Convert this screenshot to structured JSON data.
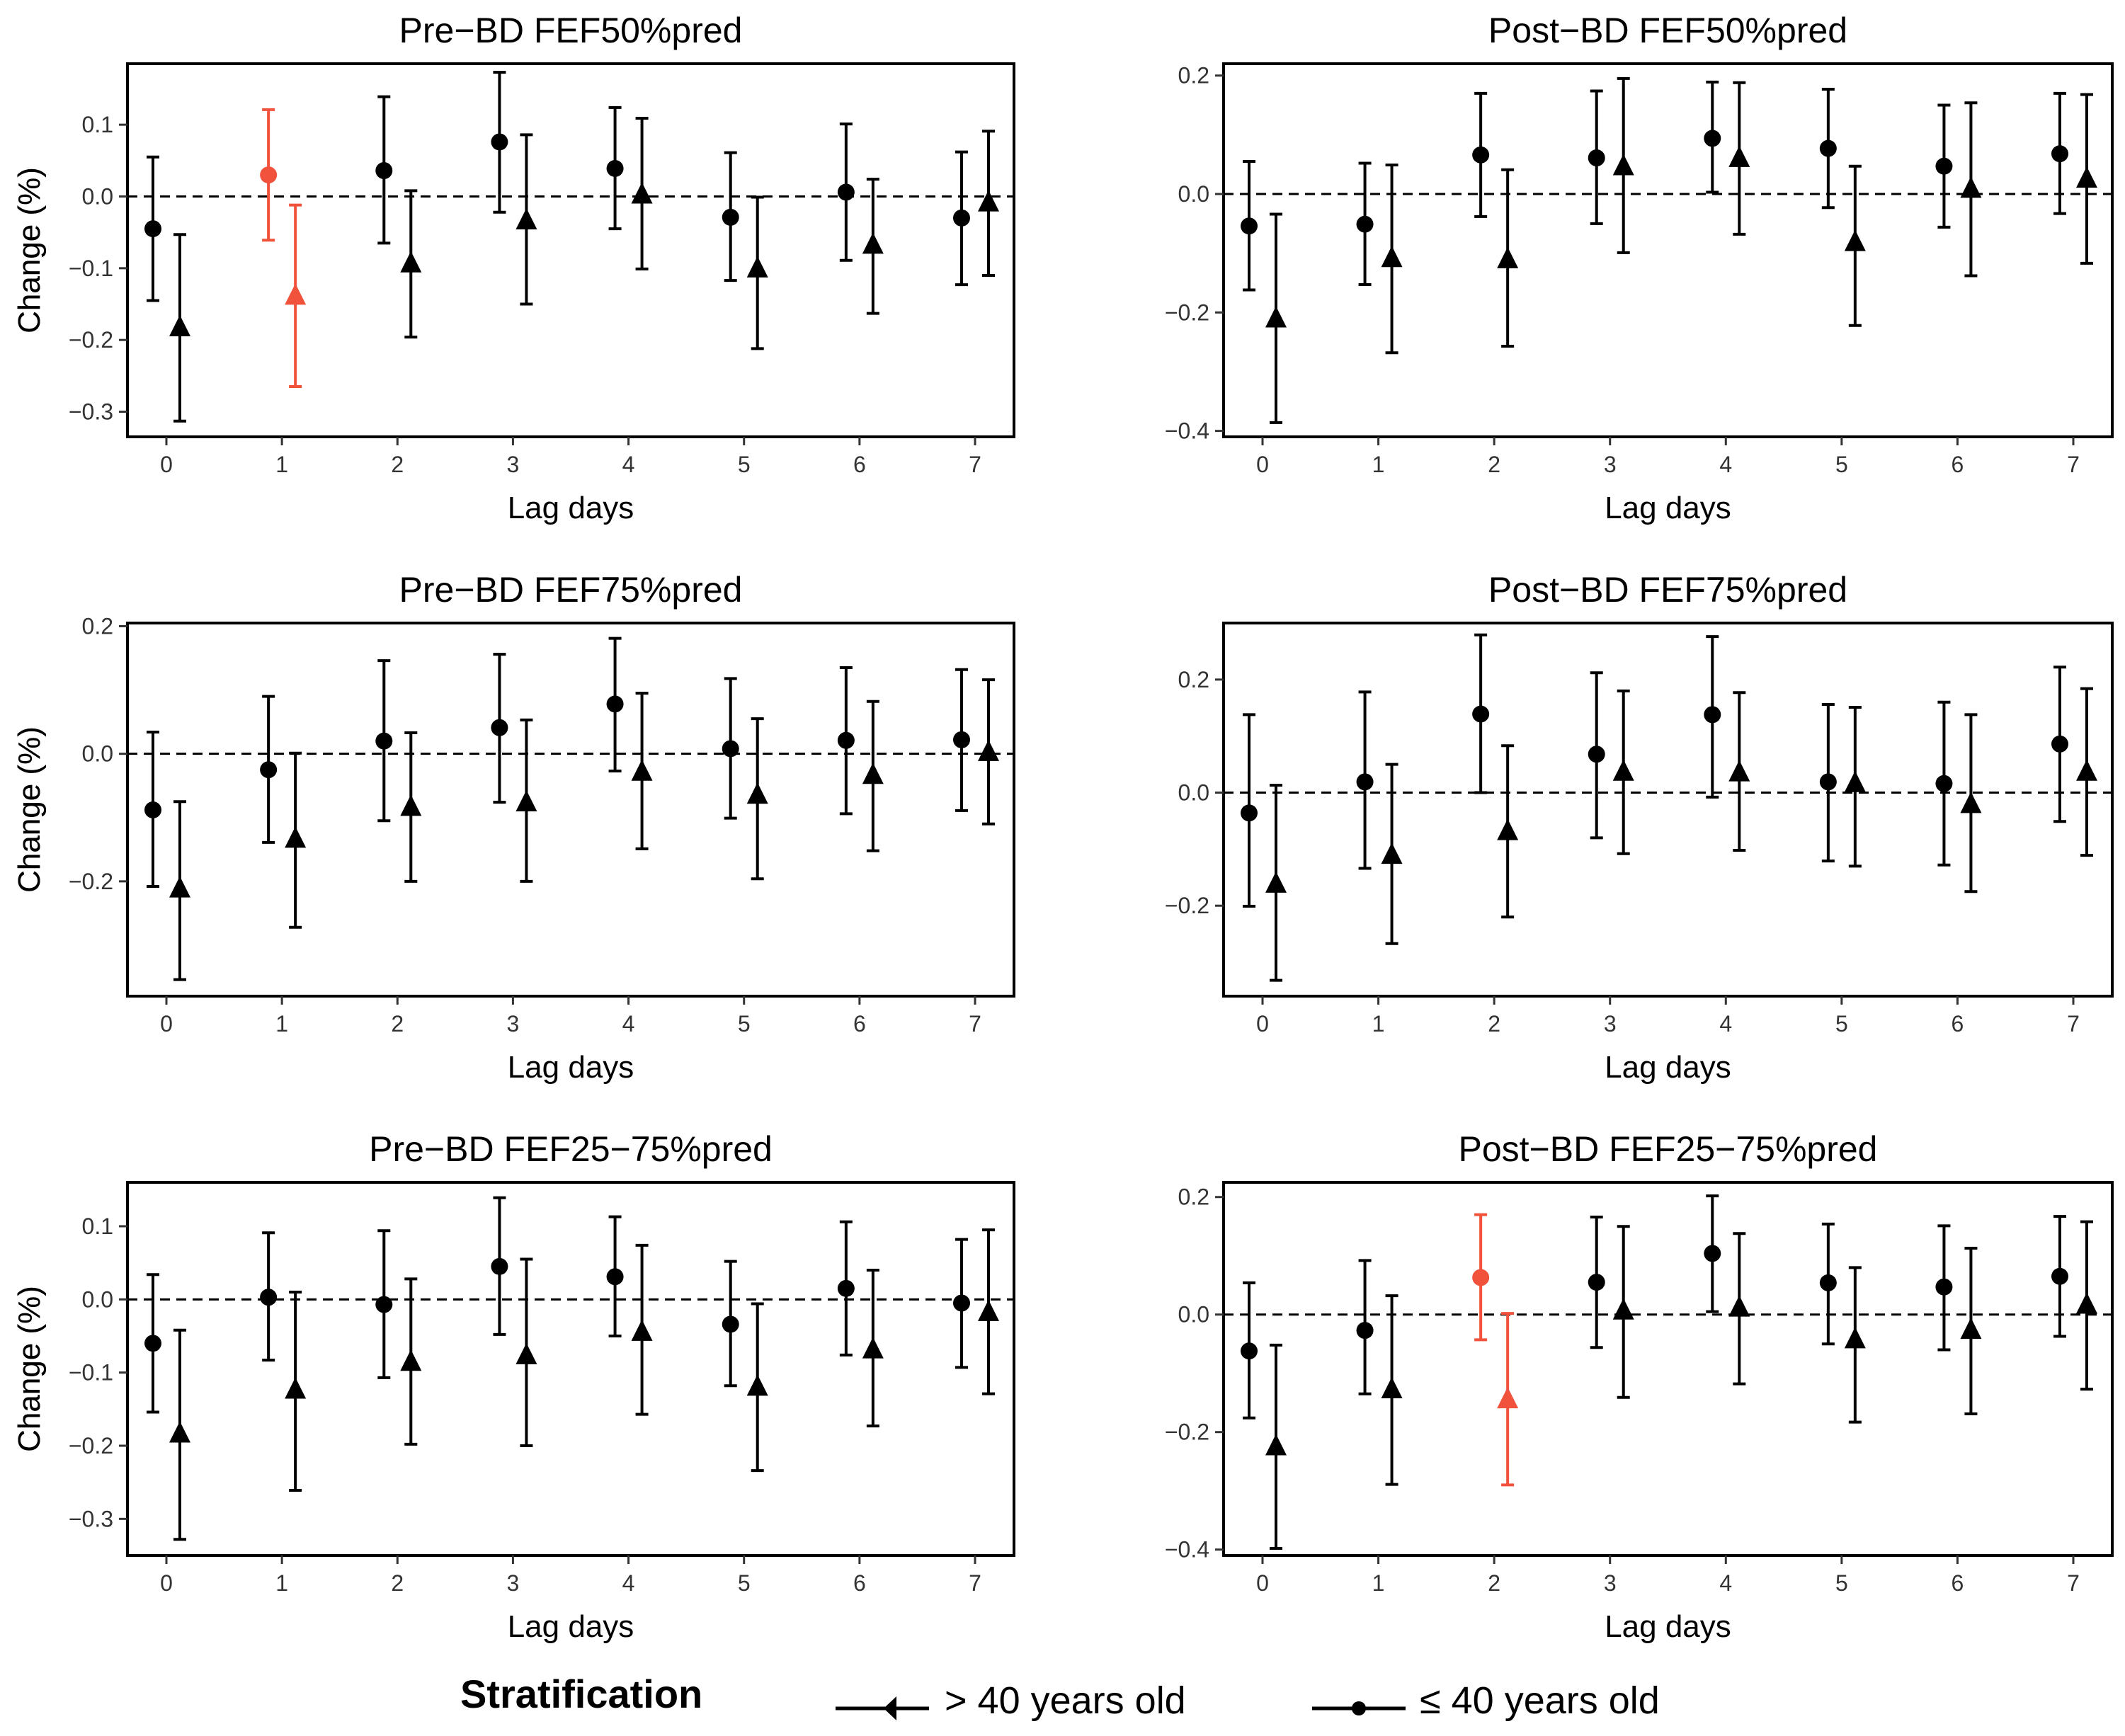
{
  "chart_data": [
    {
      "type": "errorbar",
      "title": "Pre−BD FEF50%pred",
      "xlabel": "Lag days",
      "ylabel": "Change (%)",
      "categories": [
        "0",
        "1",
        "2",
        "3",
        "4",
        "5",
        "6",
        "7"
      ],
      "ylim": [
        -0.335,
        0.185
      ],
      "yticks": [
        0.1,
        0.0,
        -0.1,
        -0.2,
        -0.3
      ],
      "ytick_labels": [
        "0.1",
        "0.0",
        "−0.1",
        "−0.2",
        "−0.3"
      ],
      "reference_line": 0,
      "series": [
        {
          "name": "≤ 40 years old",
          "marker": "circle",
          "values": [
            -0.045,
            0.03,
            0.036,
            0.076,
            0.039,
            -0.029,
            0.006,
            -0.03
          ],
          "lower": [
            -0.145,
            -0.061,
            -0.065,
            -0.022,
            -0.045,
            -0.117,
            -0.089,
            -0.123
          ],
          "upper": [
            0.055,
            0.121,
            0.139,
            0.173,
            0.124,
            0.061,
            0.101,
            0.062
          ],
          "colors": [
            "#000000",
            "#F0523C",
            "#000000",
            "#000000",
            "#000000",
            "#000000",
            "#000000",
            "#000000"
          ]
        },
        {
          "name": "> 40 years old",
          "marker": "triangle",
          "values": [
            -0.183,
            -0.139,
            -0.094,
            -0.034,
            0.002,
            -0.101,
            -0.068,
            -0.009
          ],
          "lower": [
            -0.313,
            -0.265,
            -0.196,
            -0.15,
            -0.101,
            -0.212,
            -0.163,
            -0.11
          ],
          "upper": [
            -0.053,
            -0.012,
            0.008,
            0.086,
            0.109,
            -0.001,
            0.024,
            0.091
          ],
          "colors": [
            "#000000",
            "#F0523C",
            "#000000",
            "#000000",
            "#000000",
            "#000000",
            "#000000",
            "#000000"
          ]
        }
      ]
    },
    {
      "type": "errorbar",
      "title": "Post−BD FEF50%pred",
      "xlabel": "Lag days",
      "ylabel": "Change (%)",
      "categories": [
        "0",
        "1",
        "2",
        "3",
        "4",
        "5",
        "6",
        "7"
      ],
      "ylim": [
        -0.41,
        0.22
      ],
      "yticks": [
        0.2,
        0.0,
        -0.2,
        -0.4
      ],
      "ytick_labels": [
        "0.2",
        "0.0",
        "−0.2",
        "−0.4"
      ],
      "reference_line": 0,
      "series": [
        {
          "name": "≤ 40 years old",
          "marker": "circle",
          "values": [
            -0.054,
            -0.051,
            0.066,
            0.061,
            0.094,
            0.077,
            0.047,
            0.068
          ],
          "lower": [
            -0.162,
            -0.153,
            -0.038,
            -0.05,
            0.003,
            -0.023,
            -0.056,
            -0.033
          ],
          "upper": [
            0.055,
            0.052,
            0.17,
            0.174,
            0.189,
            0.177,
            0.15,
            0.17
          ],
          "colors": [
            "#000000",
            "#000000",
            "#000000",
            "#000000",
            "#000000",
            "#000000",
            "#000000",
            "#000000"
          ]
        },
        {
          "name": "> 40 years old",
          "marker": "triangle",
          "values": [
            -0.211,
            -0.109,
            -0.111,
            0.046,
            0.06,
            -0.082,
            0.008,
            0.025
          ],
          "lower": [
            -0.386,
            -0.268,
            -0.257,
            -0.099,
            -0.068,
            -0.222,
            -0.138,
            -0.117
          ],
          "upper": [
            -0.034,
            0.049,
            0.041,
            0.195,
            0.188,
            0.047,
            0.154,
            0.168
          ],
          "colors": [
            "#000000",
            "#000000",
            "#000000",
            "#000000",
            "#000000",
            "#000000",
            "#000000",
            "#000000"
          ]
        }
      ]
    },
    {
      "type": "errorbar",
      "title": "Pre−BD FEF75%pred",
      "xlabel": "Lag days",
      "ylabel": "Change (%)",
      "categories": [
        "0",
        "1",
        "2",
        "3",
        "4",
        "5",
        "6",
        "7"
      ],
      "ylim": [
        -0.38,
        0.205
      ],
      "yticks": [
        0.2,
        0.0,
        -0.2
      ],
      "ytick_labels": [
        "0.2",
        "0.0",
        "−0.2"
      ],
      "reference_line": 0,
      "series": [
        {
          "name": "≤ 40 years old",
          "marker": "circle",
          "values": [
            -0.088,
            -0.025,
            0.02,
            0.041,
            0.078,
            0.008,
            0.021,
            0.022
          ],
          "lower": [
            -0.208,
            -0.139,
            -0.105,
            -0.076,
            -0.027,
            -0.101,
            -0.094,
            -0.089
          ],
          "upper": [
            0.034,
            0.09,
            0.146,
            0.156,
            0.181,
            0.118,
            0.135,
            0.132
          ],
          "colors": [
            "#000000",
            "#000000",
            "#000000",
            "#000000",
            "#000000",
            "#000000",
            "#000000",
            "#000000"
          ]
        },
        {
          "name": "> 40 years old",
          "marker": "triangle",
          "values": [
            -0.212,
            -0.134,
            -0.084,
            -0.077,
            -0.029,
            -0.065,
            -0.034,
            0.002
          ],
          "lower": [
            -0.354,
            -0.272,
            -0.2,
            -0.2,
            -0.149,
            -0.196,
            -0.152,
            -0.11
          ],
          "upper": [
            -0.075,
            0.001,
            0.033,
            0.053,
            0.095,
            0.055,
            0.082,
            0.116
          ],
          "colors": [
            "#000000",
            "#000000",
            "#000000",
            "#000000",
            "#000000",
            "#000000",
            "#000000",
            "#000000"
          ]
        }
      ]
    },
    {
      "type": "errorbar",
      "title": "Post−BD FEF75%pred",
      "xlabel": "Lag days",
      "ylabel": "Change (%)",
      "categories": [
        "0",
        "1",
        "2",
        "3",
        "4",
        "5",
        "6",
        "7"
      ],
      "ylim": [
        -0.36,
        0.3
      ],
      "yticks": [
        0.2,
        0.0,
        -0.2
      ],
      "ytick_labels": [
        "0.2",
        "0.0",
        "−0.2"
      ],
      "reference_line": 0,
      "series": [
        {
          "name": "≤ 40 years old",
          "marker": "circle",
          "values": [
            -0.036,
            0.019,
            0.139,
            0.068,
            0.138,
            0.019,
            0.016,
            0.086
          ],
          "lower": [
            -0.201,
            -0.134,
            0.0,
            -0.08,
            -0.008,
            -0.121,
            -0.128,
            -0.051
          ],
          "upper": [
            0.138,
            0.178,
            0.279,
            0.212,
            0.276,
            0.156,
            0.16,
            0.222
          ],
          "colors": [
            "#000000",
            "#000000",
            "#000000",
            "#000000",
            "#000000",
            "#000000",
            "#000000",
            "#000000"
          ]
        },
        {
          "name": "> 40 years old",
          "marker": "triangle",
          "values": [
            -0.162,
            -0.111,
            -0.069,
            0.036,
            0.035,
            0.016,
            -0.021,
            0.036
          ],
          "lower": [
            -0.332,
            -0.267,
            -0.22,
            -0.108,
            -0.102,
            -0.13,
            -0.175,
            -0.111
          ],
          "upper": [
            0.013,
            0.05,
            0.083,
            0.18,
            0.177,
            0.151,
            0.138,
            0.184
          ],
          "colors": [
            "#000000",
            "#000000",
            "#000000",
            "#000000",
            "#000000",
            "#000000",
            "#000000",
            "#000000"
          ]
        }
      ]
    },
    {
      "type": "errorbar",
      "title": "Pre−BD FEF25−75%pred",
      "xlabel": "Lag days",
      "ylabel": "Change (%)",
      "categories": [
        "0",
        "1",
        "2",
        "3",
        "4",
        "5",
        "6",
        "7"
      ],
      "ylim": [
        -0.35,
        0.16
      ],
      "yticks": [
        0.1,
        0.0,
        -0.1,
        -0.2,
        -0.3
      ],
      "ytick_labels": [
        "0.1",
        "0.0",
        "−0.1",
        "−0.2",
        "−0.3"
      ],
      "reference_line": 0,
      "series": [
        {
          "name": "≤ 40 years old",
          "marker": "circle",
          "values": [
            -0.06,
            0.003,
            -0.007,
            0.045,
            0.031,
            -0.034,
            0.015,
            -0.005
          ],
          "lower": [
            -0.154,
            -0.083,
            -0.107,
            -0.048,
            -0.05,
            -0.118,
            -0.076,
            -0.093
          ],
          "upper": [
            0.034,
            0.091,
            0.094,
            0.139,
            0.113,
            0.052,
            0.106,
            0.082
          ],
          "colors": [
            "#000000",
            "#000000",
            "#000000",
            "#000000",
            "#000000",
            "#000000",
            "#000000",
            "#000000"
          ]
        },
        {
          "name": "> 40 years old",
          "marker": "triangle",
          "values": [
            -0.184,
            -0.124,
            -0.086,
            -0.077,
            -0.045,
            -0.12,
            -0.069,
            -0.018
          ],
          "lower": [
            -0.328,
            -0.261,
            -0.198,
            -0.2,
            -0.157,
            -0.234,
            -0.173,
            -0.129
          ],
          "upper": [
            -0.042,
            0.01,
            0.028,
            0.055,
            0.074,
            -0.006,
            0.04,
            0.095
          ],
          "colors": [
            "#000000",
            "#000000",
            "#000000",
            "#000000",
            "#000000",
            "#000000",
            "#000000",
            "#000000"
          ]
        }
      ]
    },
    {
      "type": "errorbar",
      "title": "Post−BD FEF25−75%pred",
      "xlabel": "Lag days",
      "ylabel": "Change (%)",
      "categories": [
        "0",
        "1",
        "2",
        "3",
        "4",
        "5",
        "6",
        "7"
      ],
      "ylim": [
        -0.41,
        0.225
      ],
      "yticks": [
        0.2,
        0.0,
        -0.2,
        -0.4
      ],
      "ytick_labels": [
        "0.2",
        "0.0",
        "−0.2",
        "−0.4"
      ],
      "reference_line": 0,
      "series": [
        {
          "name": "≤ 40 years old",
          "marker": "circle",
          "values": [
            -0.062,
            -0.027,
            0.063,
            0.055,
            0.104,
            0.054,
            0.047,
            0.065
          ],
          "lower": [
            -0.176,
            -0.135,
            -0.043,
            -0.056,
            0.005,
            -0.05,
            -0.06,
            -0.037
          ],
          "upper": [
            0.054,
            0.092,
            0.17,
            0.166,
            0.202,
            0.154,
            0.151,
            0.167
          ],
          "colors": [
            "#000000",
            "#000000",
            "#F0523C",
            "#000000",
            "#000000",
            "#000000",
            "#000000",
            "#000000"
          ]
        },
        {
          "name": "> 40 years old",
          "marker": "triangle",
          "values": [
            -0.225,
            -0.128,
            -0.145,
            0.006,
            0.011,
            -0.043,
            -0.027,
            0.016
          ],
          "lower": [
            -0.398,
            -0.289,
            -0.29,
            -0.141,
            -0.118,
            -0.183,
            -0.169,
            -0.127
          ],
          "upper": [
            -0.052,
            0.032,
            0.002,
            0.15,
            0.138,
            0.08,
            0.113,
            0.158
          ],
          "colors": [
            "#000000",
            "#000000",
            "#F0523C",
            "#000000",
            "#000000",
            "#000000",
            "#000000",
            "#000000"
          ]
        }
      ]
    }
  ],
  "legend": {
    "title": "Stratification",
    "items": [
      {
        "label": "> 40 years old",
        "marker": "triangle"
      },
      {
        "label": "≤ 40 years old",
        "marker": "circle"
      }
    ]
  },
  "colors": {
    "default": "#000000",
    "highlight": "#F0523C"
  }
}
